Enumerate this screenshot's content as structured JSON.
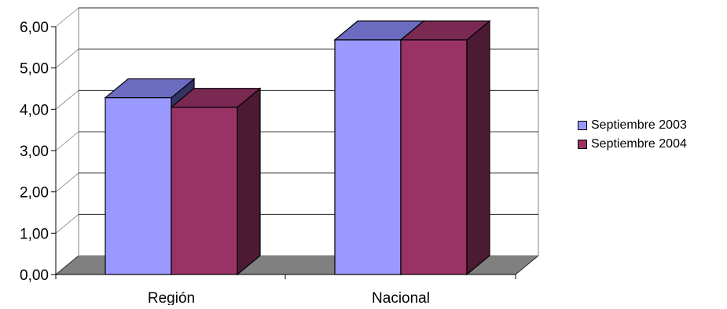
{
  "chart_data": {
    "type": "bar",
    "style": "3d-clustered",
    "categories": [
      "Región",
      "Nacional"
    ],
    "series": [
      {
        "name": "Septiembre 2003",
        "values": [
          4.28,
          5.68
        ],
        "color": "#9999ff"
      },
      {
        "name": "Septiembre 2004",
        "values": [
          4.05,
          5.68
        ],
        "color": "#993366"
      }
    ],
    "y_ticks": [
      "0,00",
      "1,00",
      "2,00",
      "3,00",
      "4,00",
      "5,00",
      "6,00"
    ],
    "ylim": [
      0,
      6
    ],
    "grid": true,
    "legend_position": "right",
    "title": "",
    "xlabel": "",
    "ylabel": ""
  }
}
